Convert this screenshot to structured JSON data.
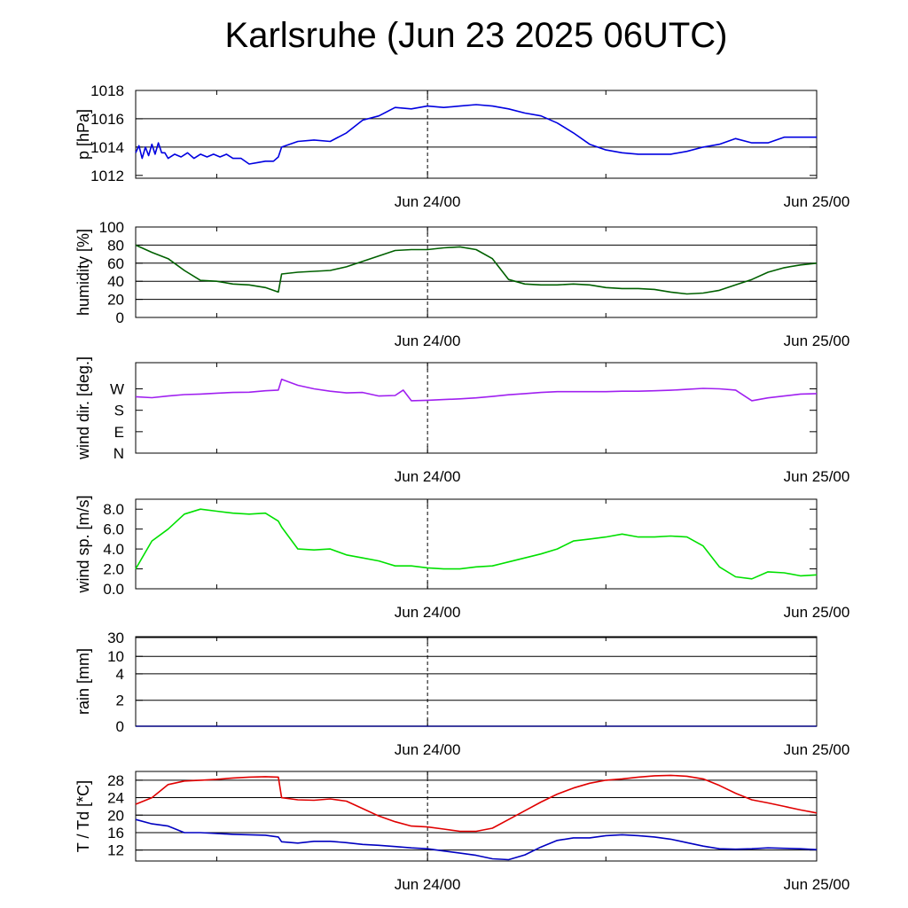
{
  "title": "Karlsruhe (Jun 23 2025 06UTC)",
  "x_axis": {
    "tick_labels": [
      "Jun 24/00",
      "Jun 25/00"
    ],
    "range_hours": [
      0,
      42
    ]
  },
  "colors": {
    "pressure": "#0000e0",
    "humidity": "#006000",
    "wind_dir": "#a020f0",
    "wind_speed": "#00e000",
    "rain": "#000080",
    "temperature": "#e00000",
    "dewpoint": "#0000c0"
  },
  "chart_data": [
    {
      "type": "line",
      "panel": "pressure",
      "ylabel": "p [hPa]",
      "ylim": [
        1011.8,
        1018
      ],
      "yticks": [
        1012,
        1014,
        1016,
        1018
      ],
      "ytick_labels": [
        "1012",
        "1014",
        "1016",
        "1018"
      ],
      "grid_lines": [
        1014,
        1016
      ],
      "series": [
        {
          "color": "#0000e0",
          "x": [
            0,
            0.2,
            0.4,
            0.6,
            0.8,
            1,
            1.2,
            1.4,
            1.6,
            1.8,
            2,
            2.4,
            2.8,
            3.2,
            3.6,
            4,
            4.4,
            4.8,
            5.2,
            5.6,
            6,
            6.5,
            7,
            7.5,
            8,
            8.5,
            8.8,
            9,
            10,
            11,
            12,
            13,
            14,
            15,
            16,
            17,
            18,
            19,
            20,
            21,
            22,
            23,
            24,
            25,
            26,
            27,
            28,
            29,
            30,
            31,
            32,
            33,
            34,
            35,
            36,
            37,
            38,
            39,
            40,
            41,
            42
          ],
          "y": [
            1013.6,
            1014.1,
            1013.2,
            1014.0,
            1013.4,
            1014.2,
            1013.5,
            1014.3,
            1013.6,
            1013.6,
            1013.2,
            1013.5,
            1013.3,
            1013.6,
            1013.2,
            1013.5,
            1013.3,
            1013.5,
            1013.3,
            1013.5,
            1013.2,
            1013.2,
            1012.8,
            1012.9,
            1013.0,
            1013.0,
            1013.3,
            1014.0,
            1014.4,
            1014.5,
            1014.4,
            1015.0,
            1015.9,
            1016.2,
            1016.8,
            1016.7,
            1016.9,
            1016.8,
            1016.9,
            1017.0,
            1016.9,
            1016.7,
            1016.4,
            1016.2,
            1015.7,
            1015.0,
            1014.2,
            1013.8,
            1013.6,
            1013.5,
            1013.5,
            1013.5,
            1013.7,
            1014.0,
            1014.2,
            1014.6,
            1014.3,
            1014.3,
            1014.7,
            1014.7,
            1014.7
          ]
        }
      ]
    },
    {
      "type": "line",
      "panel": "humidity",
      "ylabel": "humidity [%]",
      "ylim": [
        0,
        100
      ],
      "yticks": [
        0,
        20,
        40,
        60,
        80,
        100
      ],
      "ytick_labels": [
        "0",
        "20",
        "40",
        "60",
        "80",
        "100"
      ],
      "grid_lines": [
        20,
        40,
        60,
        80
      ],
      "series": [
        {
          "color": "#006000",
          "x": [
            0,
            1,
            2,
            3,
            4,
            5,
            6,
            7,
            8,
            8.8,
            9,
            10,
            11,
            12,
            13,
            14,
            15,
            16,
            17,
            18,
            19,
            20,
            21,
            22,
            23,
            24,
            25,
            26,
            27,
            28,
            29,
            30,
            31,
            32,
            33,
            34,
            35,
            36,
            37,
            38,
            39,
            40,
            41,
            42
          ],
          "y": [
            80,
            72,
            65,
            52,
            41,
            40,
            37,
            36,
            33,
            28,
            48,
            50,
            51,
            52,
            56,
            62,
            68,
            74,
            75,
            75,
            77,
            78,
            75,
            65,
            42,
            37,
            36,
            36,
            37,
            36,
            33,
            32,
            32,
            31,
            28,
            26,
            27,
            30,
            36,
            42,
            50,
            55,
            58,
            60
          ]
        }
      ]
    },
    {
      "type": "line",
      "panel": "wind_direction",
      "ylabel": "wind dir. [deg.]",
      "ylim": [
        0,
        380
      ],
      "yticks": [
        0,
        90,
        180,
        270
      ],
      "ytick_labels": [
        "N",
        "E",
        "S",
        "W"
      ],
      "grid_lines": [],
      "series": [
        {
          "color": "#a020f0",
          "x": [
            0,
            1,
            2,
            3,
            4,
            5,
            6,
            7,
            8,
            8.8,
            9,
            10,
            11,
            12,
            13,
            14,
            15,
            16,
            16.5,
            17,
            18,
            19,
            20,
            21,
            22,
            23,
            24,
            25,
            26,
            27,
            28,
            29,
            30,
            31,
            32,
            33,
            34,
            35,
            36,
            37,
            38,
            39,
            40,
            41,
            42
          ],
          "y": [
            237,
            233,
            240,
            246,
            248,
            252,
            255,
            256,
            262,
            265,
            310,
            285,
            270,
            260,
            253,
            255,
            240,
            242,
            265,
            220,
            222,
            225,
            228,
            232,
            238,
            245,
            250,
            255,
            258,
            258,
            258,
            258,
            260,
            260,
            262,
            264,
            268,
            272,
            270,
            265,
            220,
            232,
            240,
            248,
            250
          ]
        }
      ]
    },
    {
      "type": "line",
      "panel": "wind_speed",
      "ylabel": "wind sp. [m/s]",
      "ylim": [
        0,
        9
      ],
      "yticks": [
        0,
        2,
        4,
        6,
        8
      ],
      "ytick_labels": [
        "0.0",
        "2.0",
        "4.0",
        "6.0",
        "8.0"
      ],
      "grid_lines": [],
      "series": [
        {
          "color": "#00e000",
          "x": [
            0,
            1,
            2,
            3,
            4,
            5,
            6,
            7,
            8,
            8.8,
            9,
            10,
            11,
            12,
            13,
            14,
            15,
            16,
            17,
            18,
            19,
            20,
            21,
            22,
            23,
            24,
            25,
            26,
            27,
            28,
            29,
            30,
            31,
            32,
            33,
            34,
            35,
            36,
            37,
            38,
            39,
            40,
            41,
            42
          ],
          "y": [
            2.0,
            4.8,
            6.0,
            7.5,
            8.0,
            7.8,
            7.6,
            7.5,
            7.6,
            6.8,
            6.2,
            4.0,
            3.9,
            4.0,
            3.4,
            3.1,
            2.8,
            2.3,
            2.3,
            2.1,
            2.0,
            2.0,
            2.2,
            2.3,
            2.7,
            3.1,
            3.5,
            4.0,
            4.8,
            5.0,
            5.2,
            5.5,
            5.2,
            5.2,
            5.3,
            5.2,
            4.3,
            2.2,
            1.2,
            1.0,
            1.7,
            1.6,
            1.3,
            1.4
          ]
        }
      ]
    },
    {
      "type": "line",
      "panel": "rain",
      "ylabel": "rain [mm]",
      "ylim": [
        0,
        30
      ],
      "yticks": [
        0,
        2,
        4,
        10,
        30
      ],
      "ytick_labels": [
        "0",
        "2",
        "4",
        "10",
        "30"
      ],
      "grid_lines": [
        2,
        4,
        10,
        30
      ],
      "scale": "nonlinear",
      "series": [
        {
          "color": "#000080",
          "x": [
            0,
            42
          ],
          "y": [
            0,
            0
          ]
        }
      ]
    },
    {
      "type": "line",
      "panel": "temperature",
      "ylabel": "T / Td [*C]",
      "ylim": [
        9.5,
        30
      ],
      "yticks": [
        12,
        16,
        20,
        24,
        28
      ],
      "ytick_labels": [
        "12",
        "16",
        "20",
        "24",
        "28"
      ],
      "grid_lines": [
        12,
        16,
        20,
        24,
        28
      ],
      "series": [
        {
          "color": "#e00000",
          "x": [
            0,
            1,
            2,
            3,
            4,
            5,
            6,
            7,
            8,
            8.8,
            9,
            10,
            11,
            12,
            13,
            14,
            15,
            16,
            17,
            18,
            19,
            20,
            21,
            22,
            23,
            24,
            25,
            26,
            27,
            28,
            29,
            30,
            31,
            32,
            33,
            34,
            35,
            36,
            37,
            38,
            39,
            40,
            41,
            42
          ],
          "y": [
            22.5,
            24.0,
            27.0,
            27.8,
            28.0,
            28.2,
            28.5,
            28.7,
            28.8,
            28.7,
            24.0,
            23.5,
            23.4,
            23.7,
            23.2,
            21.5,
            19.8,
            18.5,
            17.5,
            17.3,
            16.8,
            16.3,
            16.3,
            17.0,
            19.0,
            21.0,
            23.0,
            24.8,
            26.2,
            27.3,
            28.0,
            28.3,
            28.7,
            29.0,
            29.1,
            28.9,
            28.3,
            26.8,
            25.0,
            23.5,
            22.8,
            22.0,
            21.2,
            20.5
          ]
        },
        {
          "color": "#0000c0",
          "x": [
            0,
            1,
            2,
            3,
            4,
            5,
            6,
            7,
            8,
            8.8,
            9,
            10,
            11,
            12,
            13,
            14,
            15,
            16,
            17,
            18,
            19,
            20,
            21,
            22,
            23,
            24,
            25,
            26,
            27,
            28,
            29,
            30,
            31,
            32,
            33,
            34,
            35,
            36,
            37,
            38,
            39,
            40,
            41,
            42
          ],
          "y": [
            19.0,
            18.0,
            17.5,
            16.0,
            16.0,
            15.8,
            15.6,
            15.5,
            15.4,
            15.0,
            13.9,
            13.6,
            14.0,
            14.0,
            13.7,
            13.3,
            13.1,
            12.8,
            12.5,
            12.3,
            11.8,
            11.3,
            10.8,
            10.0,
            9.8,
            10.9,
            12.7,
            14.2,
            14.8,
            14.8,
            15.3,
            15.5,
            15.3,
            15.0,
            14.5,
            13.7,
            12.9,
            12.3,
            12.2,
            12.3,
            12.5,
            12.4,
            12.3,
            12.1
          ]
        }
      ]
    }
  ]
}
